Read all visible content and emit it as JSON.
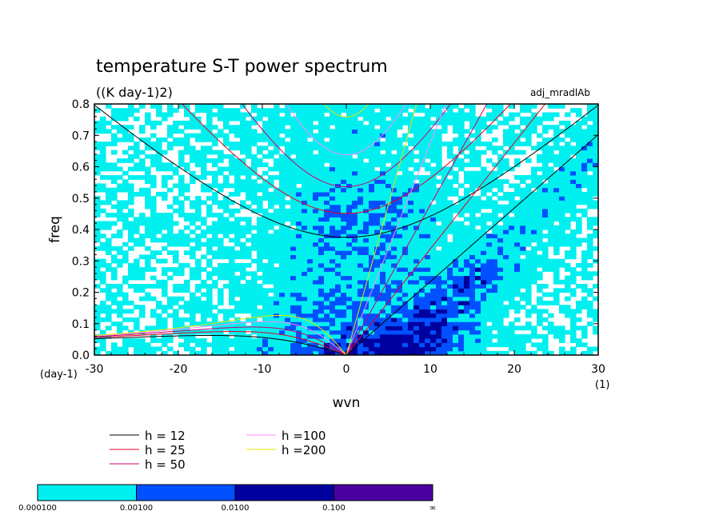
{
  "chart_data": {
    "type": "heatmap",
    "title": "temperature S-T power spectrum",
    "subtitle": "((K day-1)2)",
    "annotation": "adj_mradlAb",
    "xlabel": "wvn",
    "ylabel": "freq",
    "x_unit": "(1)",
    "y_unit": "(day-1)",
    "xlim": [
      -30,
      30
    ],
    "ylim": [
      0,
      0.8
    ],
    "x_ticks": [
      "-30",
      "-20",
      "-10",
      "0",
      "10",
      "20",
      "30"
    ],
    "y_ticks": [
      "0.0",
      "0.1",
      "0.2",
      "0.3",
      "0.4",
      "0.5",
      "0.6",
      "0.7",
      "0.8"
    ],
    "x_tick_values": [
      -30,
      -20,
      -10,
      0,
      10,
      20,
      30
    ],
    "y_tick_values": [
      0,
      0.1,
      0.2,
      0.3,
      0.4,
      0.5,
      0.6,
      0.7,
      0.8
    ],
    "grid": false,
    "legend_position": "bottom",
    "dispersion_curves": [
      {
        "name": "h = 12",
        "color": "#000000"
      },
      {
        "name": "h = 25",
        "color": "#e8001c"
      },
      {
        "name": "h = 50",
        "color": "#c8006e"
      },
      {
        "name": "h =100",
        "color": "#ff88ff"
      },
      {
        "name": "h =200",
        "color": "#e6e600"
      }
    ],
    "colorbar": {
      "levels": [
        "0.000100",
        "0.00100",
        "0.0100",
        "0.100",
        "∞"
      ],
      "colors": [
        "#00f0f0",
        "#0050ff",
        "#0000a0",
        "#4a00a0"
      ]
    },
    "background_color": "#ffffff"
  }
}
